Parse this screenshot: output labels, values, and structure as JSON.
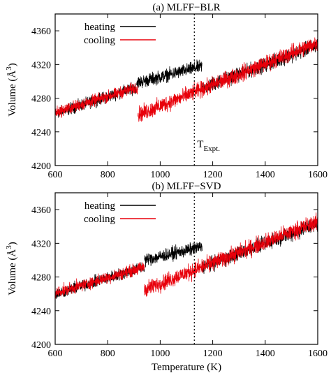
{
  "chart_data": [
    {
      "type": "line",
      "title": "(a) MLFF−BLR",
      "ylabel_main": "Volume (",
      "ylabel_unit": "Å",
      "ylabel_exp": "3",
      "ylabel_close": ")",
      "xlabel": "",
      "xlim": [
        600,
        1600
      ],
      "ylim": [
        4200,
        4380
      ],
      "xticks": [
        600,
        800,
        1000,
        1200,
        1400,
        1600
      ],
      "yticks": [
        4200,
        4240,
        4280,
        4320,
        4360
      ],
      "grid": false,
      "legend_position": "top-left",
      "colors": {
        "heating": "#000000",
        "cooling": "#e8000b"
      },
      "vline": {
        "x": 1130,
        "style": "dotted"
      },
      "annotation": {
        "main": "T",
        "sub": "Expt."
      },
      "series": [
        {
          "name": "heating",
          "segments": [
            {
              "x": [
                600,
                910
              ],
              "y": [
                4262,
                4293
              ],
              "noise": 10
            },
            {
              "x": [
                910,
                1160
              ],
              "y": [
                4298,
                4318
              ],
              "noise": 11
            },
            {
              "x": [
                1160,
                1600
              ],
              "y": [
                4292,
                4343
              ],
              "noise": 12
            }
          ]
        },
        {
          "name": "cooling",
          "segments": [
            {
              "x": [
                600,
                915
              ],
              "y": [
                4263,
                4293
              ],
              "noise": 10
            },
            {
              "x": [
                915,
                1600
              ],
              "y": [
                4260,
                4346
              ],
              "noise": 14
            }
          ]
        }
      ]
    },
    {
      "type": "line",
      "title": "(b) MLFF−SVD",
      "ylabel_main": "Volume (",
      "ylabel_unit": "Å",
      "ylabel_exp": "3",
      "ylabel_close": ")",
      "xlabel": "Temperature (K)",
      "xlim": [
        600,
        1600
      ],
      "ylim": [
        4200,
        4380
      ],
      "xticks": [
        600,
        800,
        1000,
        1200,
        1400,
        1600
      ],
      "yticks": [
        4200,
        4240,
        4280,
        4320,
        4360
      ],
      "grid": false,
      "legend_position": "top-left",
      "colors": {
        "heating": "#000000",
        "cooling": "#e8000b"
      },
      "vline": {
        "x": 1130,
        "style": "dotted"
      },
      "series": [
        {
          "name": "heating",
          "segments": [
            {
              "x": [
                600,
                940
              ],
              "y": [
                4260,
                4292
              ],
              "noise": 10
            },
            {
              "x": [
                940,
                1160
              ],
              "y": [
                4300,
                4316
              ],
              "noise": 11
            },
            {
              "x": [
                1160,
                1600
              ],
              "y": [
                4292,
                4343
              ],
              "noise": 12
            }
          ]
        },
        {
          "name": "cooling",
          "segments": [
            {
              "x": [
                600,
                940
              ],
              "y": [
                4261,
                4292
              ],
              "noise": 10
            },
            {
              "x": [
                940,
                1600
              ],
              "y": [
                4265,
                4346
              ],
              "noise": 14
            }
          ]
        }
      ]
    }
  ]
}
